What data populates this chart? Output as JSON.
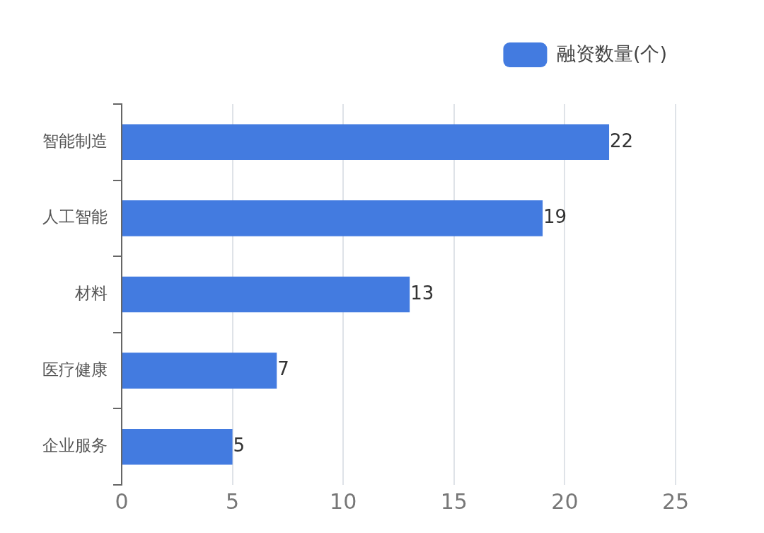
{
  "chart_data": {
    "type": "bar",
    "orientation": "horizontal",
    "categories": [
      "智能制造",
      "人工智能",
      "材料",
      "医疗健康",
      "企业服务"
    ],
    "series": [
      {
        "name": "融资数量(个)",
        "color": "#437be0",
        "values": [
          22,
          19,
          13,
          7,
          5
        ]
      }
    ],
    "xlim": [
      0,
      25
    ],
    "xticks": [
      0,
      5,
      10,
      15,
      20,
      25
    ],
    "grid": "x",
    "legend": "top right",
    "data_labels": true
  }
}
